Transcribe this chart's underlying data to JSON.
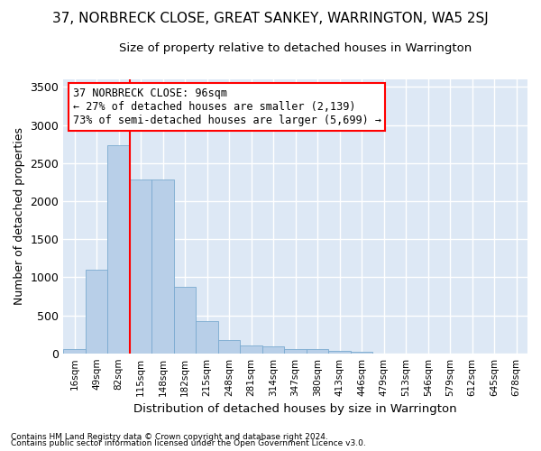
{
  "title": "37, NORBRECK CLOSE, GREAT SANKEY, WARRINGTON, WA5 2SJ",
  "subtitle": "Size of property relative to detached houses in Warrington",
  "xlabel": "Distribution of detached houses by size in Warrington",
  "ylabel": "Number of detached properties",
  "bar_labels": [
    "16sqm",
    "49sqm",
    "82sqm",
    "115sqm",
    "148sqm",
    "182sqm",
    "215sqm",
    "248sqm",
    "281sqm",
    "314sqm",
    "347sqm",
    "380sqm",
    "413sqm",
    "446sqm",
    "479sqm",
    "513sqm",
    "546sqm",
    "579sqm",
    "612sqm",
    "645sqm",
    "678sqm"
  ],
  "bar_values": [
    55,
    1100,
    2730,
    2280,
    2290,
    870,
    420,
    170,
    100,
    90,
    60,
    50,
    30,
    20,
    0,
    0,
    0,
    0,
    0,
    0,
    0
  ],
  "bar_color": "#b8cfe8",
  "bar_edge_color": "#7aaad0",
  "vline_bar_index": 2,
  "annotation_text": "37 NORBRECK CLOSE: 96sqm\n← 27% of detached houses are smaller (2,139)\n73% of semi-detached houses are larger (5,699) →",
  "annotation_box_color": "white",
  "annotation_box_edge_color": "red",
  "vline_color": "red",
  "ylim": [
    0,
    3600
  ],
  "yticks": [
    0,
    500,
    1000,
    1500,
    2000,
    2500,
    3000,
    3500
  ],
  "background_color": "#dde8f5",
  "grid_color": "white",
  "title_fontsize": 11,
  "subtitle_fontsize": 9.5,
  "footer1": "Contains HM Land Registry data © Crown copyright and database right 2024.",
  "footer2": "Contains public sector information licensed under the Open Government Licence v3.0."
}
